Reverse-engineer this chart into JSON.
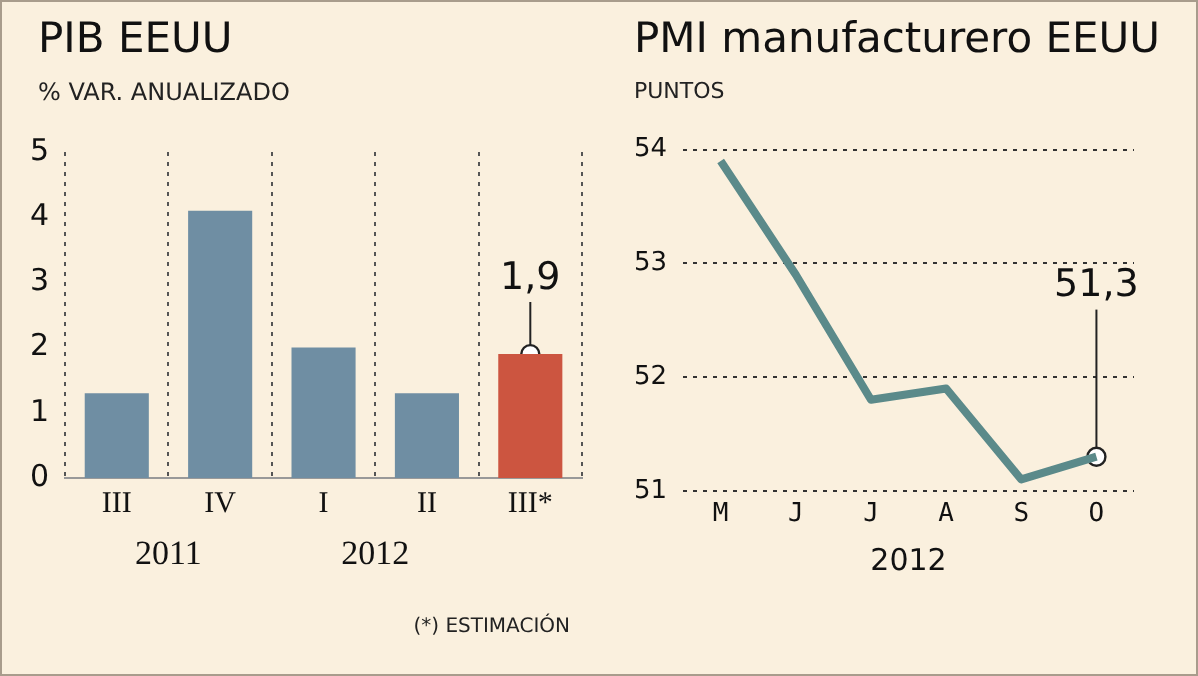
{
  "chart_data": [
    {
      "type": "bar",
      "title": "PIB EEUU",
      "ylabel": "% VAR. ANUALIZADO",
      "categories": [
        "III",
        "IV",
        "I",
        "II",
        "III*"
      ],
      "values": [
        1.3,
        4.1,
        2.0,
        1.3,
        1.9
      ],
      "colors": [
        "#6f8ea3",
        "#6f8ea3",
        "#6f8ea3",
        "#6f8ea3",
        "#cc5540"
      ],
      "value_labels": [
        null,
        null,
        null,
        null,
        "1,9"
      ],
      "ylim": [
        0,
        5
      ],
      "yticks": [
        0,
        1,
        2,
        3,
        4,
        5
      ],
      "grid": "x",
      "legend": false,
      "annotations": [
        "2011",
        "2012",
        "(*) ESTIMACIÓN"
      ]
    },
    {
      "type": "line",
      "title": "PMI manufacturero EEUU",
      "ylabel": "PUNTOS",
      "xlabel": "2012",
      "categories": [
        "M",
        "J",
        "J",
        "A",
        "S",
        "O"
      ],
      "series": [
        {
          "color": "#5b8a8a",
          "values": [
            53.9,
            52.9,
            51.8,
            51.9,
            51.1,
            51.3
          ],
          "value_labels": [
            null,
            null,
            null,
            null,
            null,
            "51,3"
          ]
        }
      ],
      "ylim": [
        51,
        54
      ],
      "yticks": [
        51,
        52,
        53,
        54
      ],
      "grid": "y",
      "legend": false,
      "line_style": "solid"
    }
  ]
}
